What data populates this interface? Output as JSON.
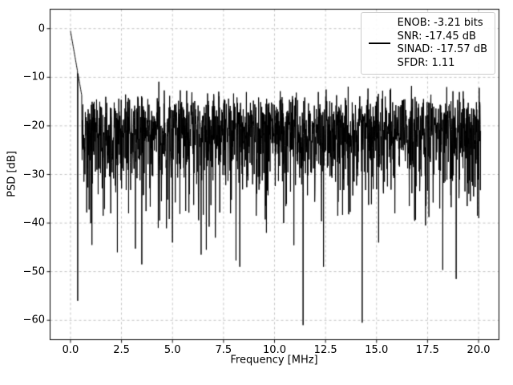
{
  "chart_data": {
    "type": "line",
    "title": "",
    "xlabel": "Frequency [MHz]",
    "ylabel": "PSD [dB]",
    "xlim": [
      -1,
      21
    ],
    "ylim": [
      -64,
      4
    ],
    "grid": true,
    "line_color": "#000000",
    "background_color": "#ffffff",
    "grid_color": "#b8b8b8",
    "x_ticks": {
      "values": [
        0,
        2.5,
        5,
        7.5,
        10,
        12.5,
        15,
        17.5,
        20
      ],
      "labels": [
        "0.0",
        "2.5",
        "5.0",
        "7.5",
        "10.0",
        "12.5",
        "15.0",
        "17.5",
        "20.0"
      ]
    },
    "y_ticks": {
      "values": [
        0,
        -10,
        -20,
        -30,
        -40,
        -50,
        -60
      ],
      "labels": [
        "0",
        "−10",
        "−20",
        "−30",
        "−40",
        "−50",
        "−60"
      ]
    },
    "legend": {
      "position": "upper right",
      "entries": [
        "ENOB: -3.21 bits",
        "SNR: -17.45 dB",
        "SINAD: -17.57 dB",
        "SFDR: 1.11"
      ]
    },
    "metrics": {
      "enob_bits": -3.21,
      "snr_db": -17.45,
      "sinad_db": -17.57,
      "sfdr": 1.11
    },
    "signal": {
      "description": "Noisy PSD trace: dense noise floor band roughly -12 to -35 dB with random dips, a narrow fundamental peak near 0 MHz reaching about -0.5 dB, and isolated deep nulls listed below as [frequency_MHz, dB].",
      "seed": 20,
      "n_points": 2048,
      "f_start": 0,
      "f_end": 20.1,
      "noise_offset_db": -20,
      "peak": {
        "db": -0.5,
        "slope_db_per_mhz": 24,
        "extent_mhz": 0.55
      },
      "deep_nulls": [
        [
          0.35,
          -56
        ],
        [
          1.05,
          -44.5
        ],
        [
          1.6,
          -38.5
        ],
        [
          2.3,
          -46
        ],
        [
          2.85,
          -38
        ],
        [
          3.5,
          -48.5
        ],
        [
          4.3,
          -41
        ],
        [
          5.0,
          -44
        ],
        [
          5.65,
          -37.5
        ],
        [
          6.4,
          -46.5
        ],
        [
          7.1,
          -43
        ],
        [
          7.85,
          -38
        ],
        [
          8.3,
          -49
        ],
        [
          9.1,
          -38.5
        ],
        [
          9.6,
          -42
        ],
        [
          10.45,
          -40
        ],
        [
          11.4,
          -61
        ],
        [
          12.4,
          -49
        ],
        [
          13.1,
          -38.5
        ],
        [
          14.3,
          -60.5
        ],
        [
          15.1,
          -44
        ],
        [
          15.9,
          -38
        ],
        [
          16.6,
          -36.5
        ],
        [
          17.4,
          -40.5
        ],
        [
          18.1,
          -37
        ],
        [
          18.9,
          -51.5
        ],
        [
          19.6,
          -35.5
        ]
      ]
    }
  }
}
